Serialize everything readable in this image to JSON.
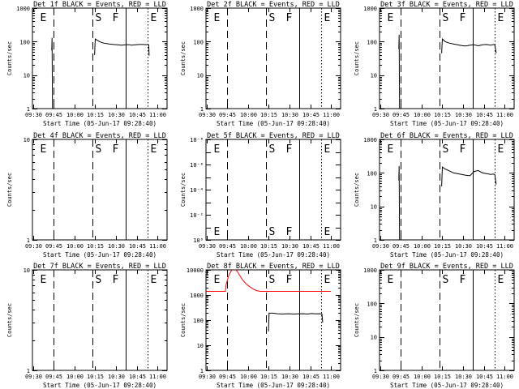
{
  "colors": {
    "events": "#000000",
    "lld": "#ff0000"
  },
  "figure": {
    "columns": 3,
    "rows": 3,
    "x_ticks": [
      "09:30",
      "09:45",
      "10:00",
      "10:15",
      "10:30",
      "10:45",
      "11:00"
    ],
    "x_tick_values": [
      570,
      585,
      600,
      615,
      630,
      645,
      660
    ],
    "xlim": [
      569.5,
      667
    ],
    "marker_positions_minutes": [
      585,
      613,
      637,
      653
    ],
    "marker_letters": [
      "E",
      "S",
      "F",
      "E"
    ],
    "marker_styles": [
      "dash",
      "dash",
      "solid",
      "dot"
    ]
  },
  "chart_data": [
    {
      "type": "line",
      "title": "Det 1f BLACK = Events, RED = LLD",
      "xlabel": "Start Time (05-Jun-17 09:28:40)",
      "ylabel": "Counts/sec",
      "ylog": true,
      "ylim": [
        1,
        1000
      ],
      "yticks": [
        "1",
        "10",
        "100",
        "1000"
      ],
      "ytick_values": [
        1,
        10,
        100,
        1000
      ],
      "series": [
        {
          "color": "#000000",
          "x": [
            583.5,
            583.7,
            584
          ],
          "y": [
            55,
            130,
            0
          ]
        },
        {
          "color": "#000000",
          "x": [
            614.5,
            615,
            618,
            621,
            625,
            628,
            631,
            634,
            637,
            640,
            641,
            644,
            647,
            650,
            652,
            653,
            653.7,
            654
          ],
          "y": [
            40,
            120,
            100,
            90,
            85,
            82,
            80,
            78,
            80,
            81,
            78,
            80,
            82,
            82,
            80,
            83,
            80,
            38
          ]
        }
      ]
    },
    {
      "type": "line",
      "title": "Det 2f BLACK = Events, RED = LLD",
      "xlabel": "Start Time (05-Jun-17 09:28:40)",
      "ylabel": "Counts/sec",
      "ylog": true,
      "ylim": [
        1,
        1000
      ],
      "yticks": [
        "1",
        "10",
        "100",
        "1000"
      ],
      "ytick_values": [
        1,
        10,
        100,
        1000
      ],
      "series": []
    },
    {
      "type": "line",
      "title": "Det 3f BLACK = Events, RED = LLD",
      "xlabel": "Start Time (05-Jun-17 09:28:40)",
      "ylabel": "Counts/sec",
      "ylog": true,
      "ylim": [
        1,
        1000
      ],
      "yticks": [
        "1",
        "10",
        "100",
        "1000"
      ],
      "ytick_values": [
        1,
        10,
        100,
        1000
      ],
      "series": [
        {
          "color": "#000000",
          "x": [
            583.5,
            583.7,
            584
          ],
          "y": [
            60,
            160,
            0
          ]
        },
        {
          "color": "#000000",
          "x": [
            614.5,
            615,
            617,
            620,
            623,
            626,
            629,
            632,
            635,
            638,
            641,
            644,
            647,
            650,
            652,
            653,
            654
          ],
          "y": [
            45,
            120,
            100,
            90,
            85,
            80,
            76,
            74,
            78,
            80,
            75,
            80,
            82,
            78,
            82,
            80,
            45
          ]
        }
      ]
    },
    {
      "type": "line",
      "title": "Det 4f BLACK = Events, RED = LLD",
      "xlabel": "Start Time (05-Jun-17 09:28:40)",
      "ylabel": "Counts/sec",
      "ylog": true,
      "ylim": [
        1,
        10
      ],
      "yticks": [
        "1",
        "10"
      ],
      "ytick_values": [
        1,
        10
      ],
      "series": []
    },
    {
      "type": "line",
      "title": "Det 5f BLACK = Events, RED = LLD",
      "xlabel": "Start Time (05-Jun-17 09:28:40)",
      "ylabel": "Counts/sec",
      "ylog": true,
      "ylim": [
        1,
        1e-08
      ],
      "yticks": [
        "10⁻⁸",
        "10⁻⁶",
        "10⁻⁴",
        "10⁻²",
        "10⁰"
      ],
      "ytick_values": [
        1e-08,
        1e-06,
        0.0001,
        0.01,
        1
      ],
      "series": []
    },
    {
      "type": "line",
      "title": "Det 6f BLACK = Events, RED = LLD",
      "xlabel": "Start Time (05-Jun-17 09:28:40)",
      "ylabel": "Counts/sec",
      "ylog": true,
      "ylim": [
        1,
        1000
      ],
      "yticks": [
        "1",
        "10",
        "100",
        "1000"
      ],
      "ytick_values": [
        1,
        10,
        100,
        1000
      ],
      "series": [
        {
          "color": "#000000",
          "x": [
            583.5,
            583.7,
            584
          ],
          "y": [
            60,
            160,
            0
          ]
        },
        {
          "color": "#000000",
          "x": [
            614.5,
            615,
            617,
            620,
            623,
            626,
            629,
            632,
            635,
            638,
            641,
            644,
            647,
            650,
            652,
            653,
            654
          ],
          "y": [
            40,
            150,
            130,
            115,
            100,
            95,
            90,
            85,
            82,
            110,
            118,
            100,
            95,
            90,
            92,
            88,
            45
          ]
        }
      ]
    },
    {
      "type": "line",
      "title": "Det 7f BLACK = Events, RED = LLD",
      "xlabel": "Start Time (05-Jun-17 09:28:40)",
      "ylabel": "Counts/sec",
      "ylog": true,
      "ylim": [
        1,
        10
      ],
      "yticks": [
        "1",
        "10"
      ],
      "ytick_values": [
        1,
        10
      ],
      "series": []
    },
    {
      "type": "line",
      "title": "Det 8f BLACK = Events, RED = LLD",
      "xlabel": "Start Time (05-Jun-17 09:28:40)",
      "ylabel": "Counts/sec",
      "ylog": true,
      "ylim": [
        1,
        10000
      ],
      "yticks": [
        "1",
        "10",
        "100",
        "1000",
        "10000"
      ],
      "ytick_values": [
        1,
        10,
        100,
        1000,
        10000
      ],
      "series": [
        {
          "color": "#ff0000",
          "x": [
            569.5,
            583.6,
            584,
            586,
            588,
            590,
            592,
            594,
            596,
            598,
            600,
            602,
            604,
            606,
            609,
            612,
            660
          ],
          "y": [
            1400,
            1400,
            2500,
            6000,
            9500,
            11000,
            9000,
            6000,
            4000,
            3000,
            2400,
            2000,
            1700,
            1500,
            1400,
            1400,
            1400
          ]
        },
        {
          "color": "#000000",
          "x": [
            614.8,
            615.2,
            618,
            621,
            625,
            629,
            633,
            637,
            640,
            643,
            646,
            649,
            652,
            653.5,
            654
          ],
          "y": [
            35,
            190,
            190,
            180,
            175,
            180,
            175,
            178,
            180,
            175,
            182,
            178,
            180,
            175,
            80
          ]
        }
      ]
    },
    {
      "type": "line",
      "title": "Det 9f BLACK = Events, RED = LLD",
      "xlabel": "Start Time (05-Jun-17 09:28:40)",
      "ylabel": "Counts/sec",
      "ylog": true,
      "ylim": [
        1,
        1000
      ],
      "yticks": [
        "1",
        "10",
        "100",
        "1000"
      ],
      "ytick_values": [
        1,
        10,
        100,
        1000
      ],
      "series": []
    }
  ]
}
